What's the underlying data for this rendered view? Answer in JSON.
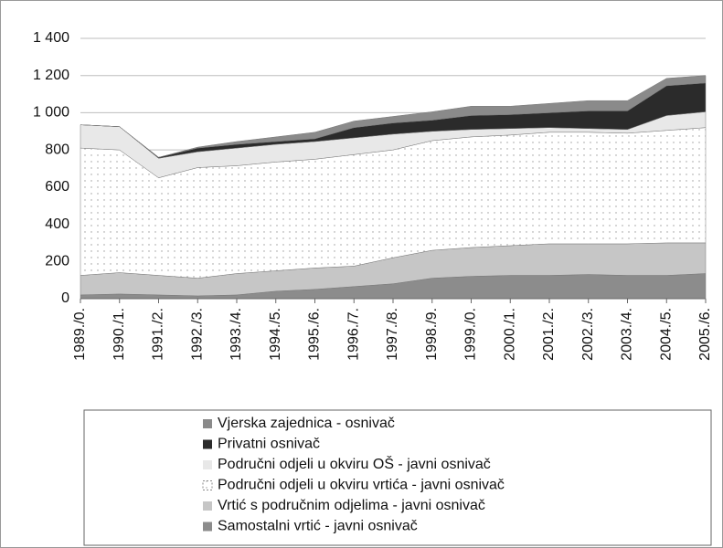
{
  "chart_data": {
    "type": "stacked_area",
    "categories": [
      "1989./0.",
      "1990./1.",
      "1991./2.",
      "1992./3.",
      "1993./4.",
      "1994./5.",
      "1995./6.",
      "1996./7.",
      "1997./8.",
      "1998./9.",
      "1999./0.",
      "2000./1.",
      "2001./2.",
      "2002./3.",
      "2003./4.",
      "2004./5.",
      "2005./6."
    ],
    "series": [
      {
        "name": "Samostalni vrtić - javni osnivač",
        "color": "#8c8c8c",
        "values": [
          20,
          25,
          20,
          15,
          20,
          40,
          50,
          65,
          80,
          110,
          120,
          125,
          125,
          130,
          125,
          125,
          135
        ]
      },
      {
        "name": "Vrtić s područnim odjelima - javni osnivač",
        "color": "#c6c6c6",
        "values": [
          105,
          115,
          105,
          95,
          115,
          110,
          115,
          110,
          140,
          150,
          155,
          160,
          170,
          165,
          170,
          175,
          165
        ]
      },
      {
        "name": "Područni odjeli u okviru vrtića - javni osnivač",
        "color": "#ffffff",
        "pattern": "dots",
        "values": [
          685,
          660,
          525,
          595,
          580,
          585,
          585,
          600,
          580,
          590,
          595,
          595,
          600,
          600,
          595,
          605,
          620
        ]
      },
      {
        "name": "Područni odjeli u okviru OŠ - javni osnivač",
        "color": "#e8e8e8",
        "values": [
          125,
          125,
          105,
          85,
          95,
          95,
          95,
          90,
          85,
          50,
          40,
          35,
          25,
          20,
          20,
          80,
          85
        ]
      },
      {
        "name": "Privatni osnivač",
        "color": "#2b2b2b",
        "values": [
          0,
          0,
          5,
          20,
          20,
          15,
          15,
          55,
          60,
          60,
          75,
          75,
          80,
          95,
          100,
          160,
          155
        ]
      },
      {
        "name": "Vjerska zajednica - osnivač",
        "color": "#8a8a8a",
        "values": [
          0,
          0,
          0,
          5,
          15,
          25,
          35,
          35,
          35,
          45,
          50,
          45,
          50,
          55,
          55,
          40,
          40
        ]
      }
    ],
    "ylim": [
      0,
      1400
    ],
    "yticks": [
      0,
      200,
      400,
      600,
      800,
      {
        "value": 1000,
        "label": "1 000"
      },
      {
        "value": 1200,
        "label": "1 200"
      },
      {
        "value": 1400,
        "label": "1 400"
      }
    ],
    "grid": true,
    "legend": "bottom",
    "legend_order": "reversed"
  }
}
